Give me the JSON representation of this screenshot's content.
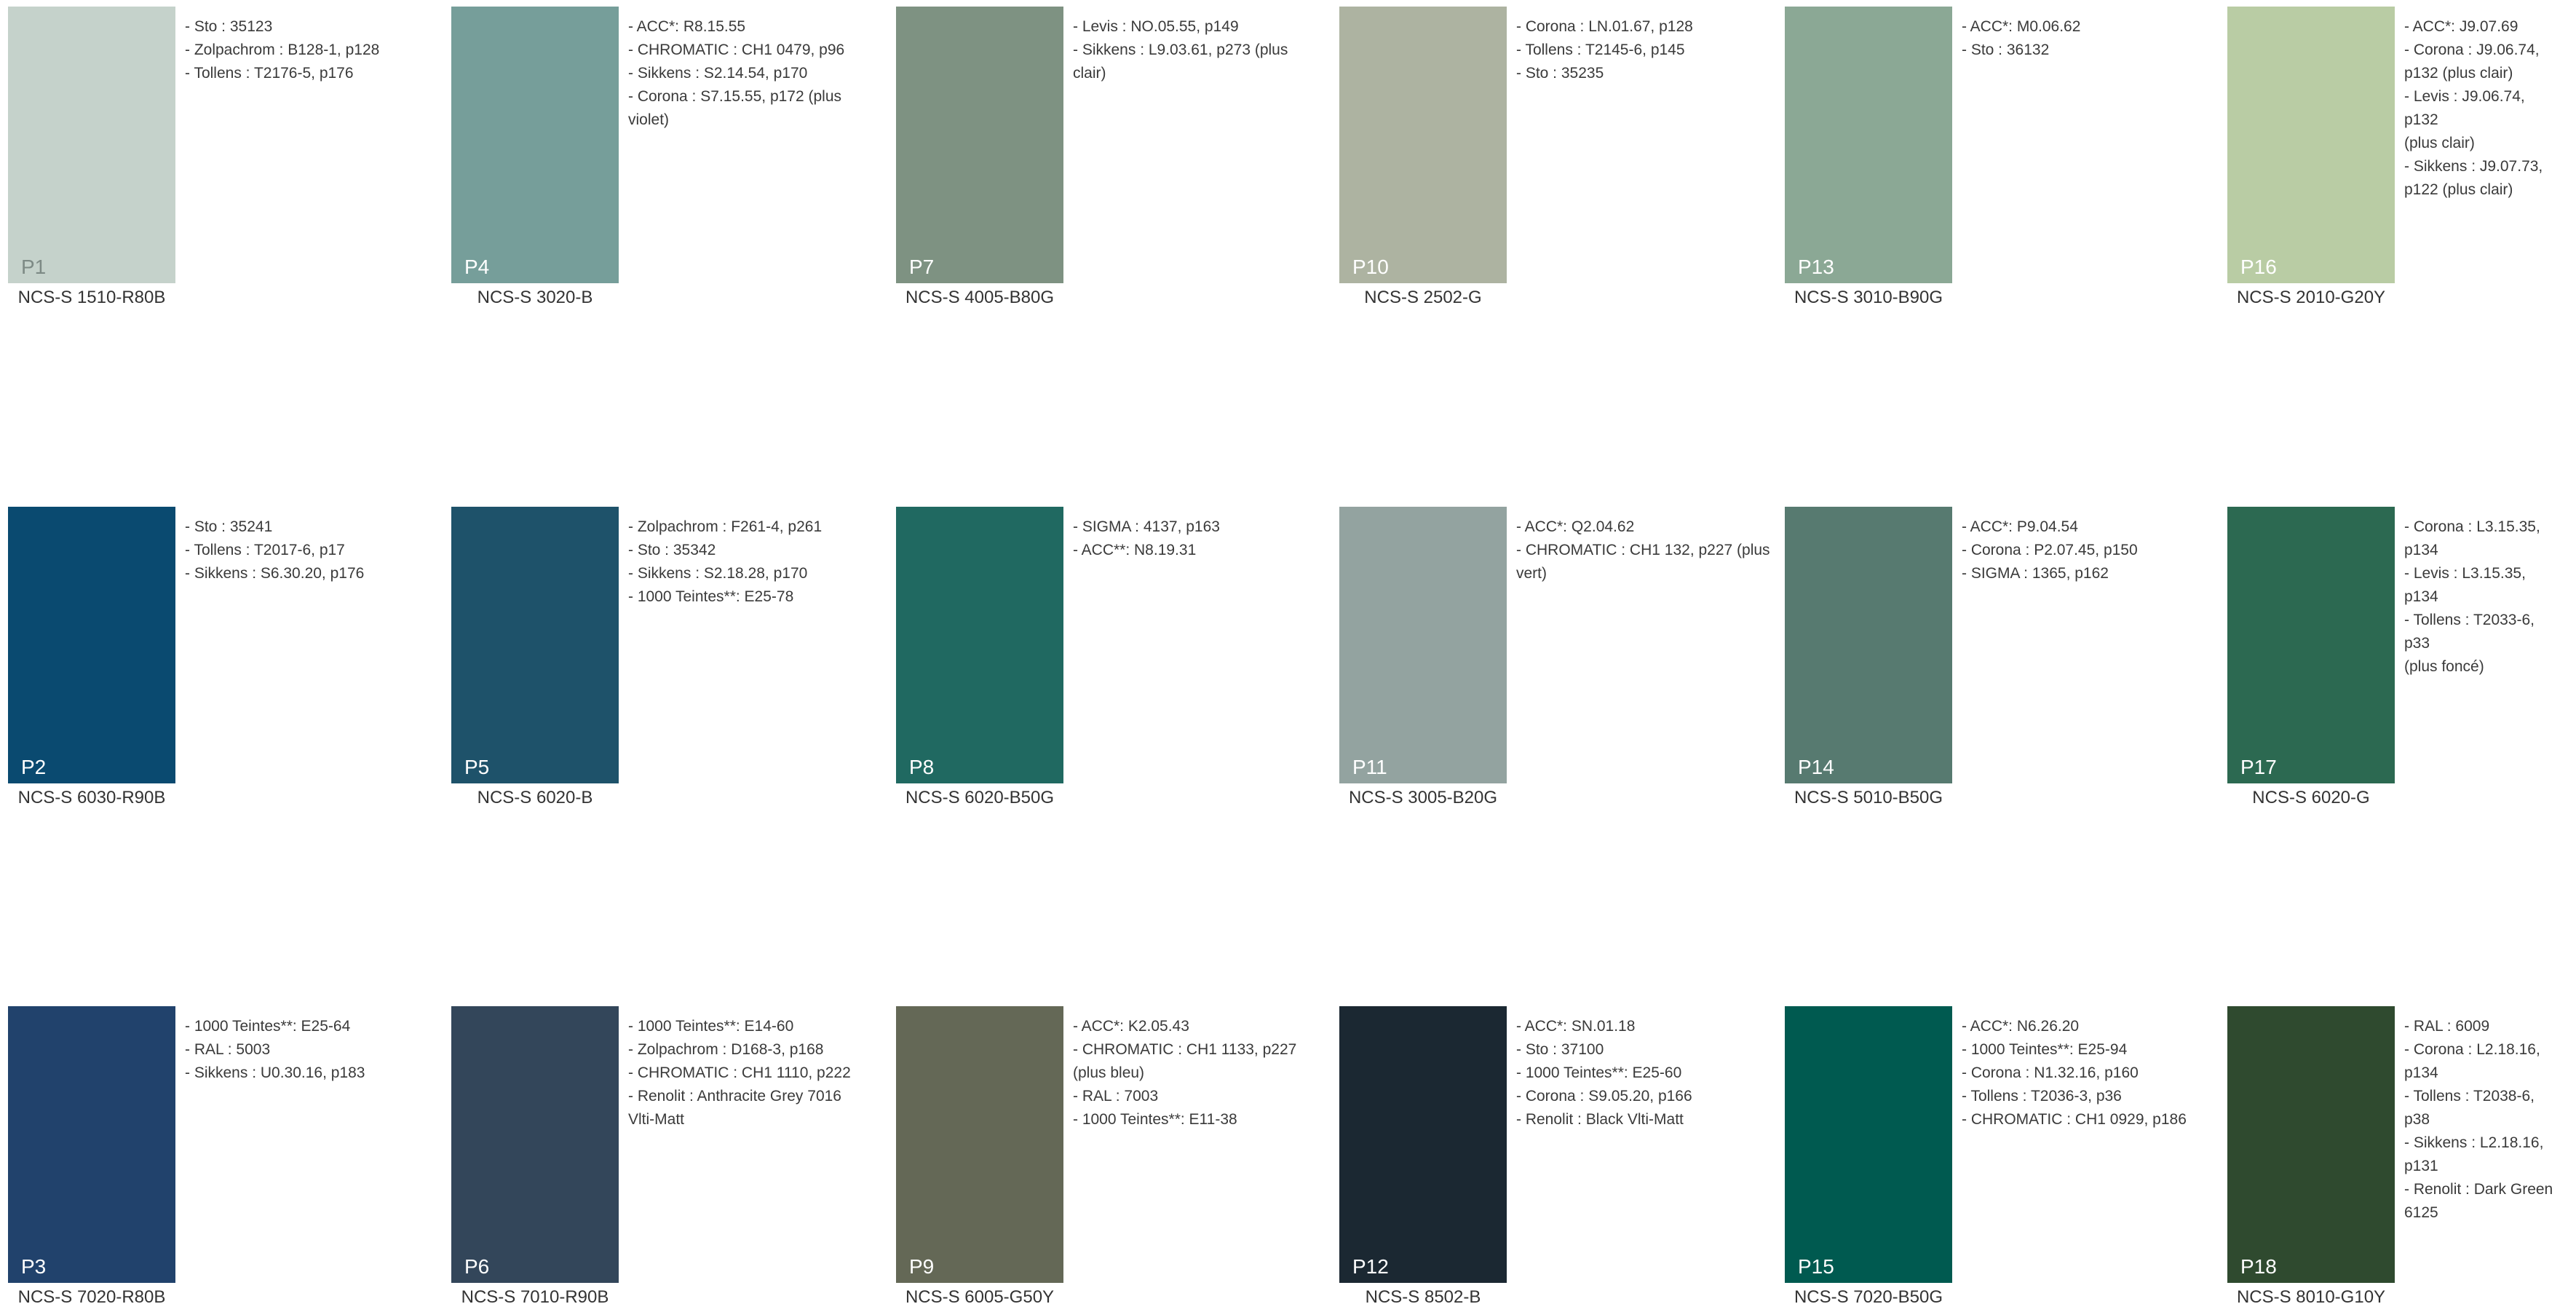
{
  "swatches": [
    {
      "code": "P1",
      "ncs": "NCS-S 1510-R80B",
      "color": "#c5d2cb",
      "label_color": "#7d8a85",
      "refs": [
        "- Sto : 35123",
        "- Zolpachrom : B128-1, p128",
        "- Tollens : T2176-5, p176"
      ]
    },
    {
      "code": "P4",
      "ncs": "NCS-S 3020-B",
      "color": "#769e9a",
      "label_color": "#ffffff",
      "refs": [
        "- ACC*: R8.15.55",
        "- CHROMATIC : CH1 0479, p96",
        "- Sikkens : S2.14.54, p170",
        "- Corona : S7.15.55, p172 (plus\nviolet)"
      ]
    },
    {
      "code": "P7",
      "ncs": "NCS-S 4005-B80G",
      "color": "#7e9282",
      "label_color": "#ffffff",
      "refs": [
        "- Levis : NO.05.55, p149",
        "- Sikkens : L9.03.61, p273 (plus\nclair)"
      ]
    },
    {
      "code": "P10",
      "ncs": "NCS-S 2502-G",
      "color": "#adb3a1",
      "label_color": "#ffffff",
      "refs": [
        "- Corona : LN.01.67, p128",
        "- Tollens : T2145-6, p145",
        "- Sto : 35235"
      ]
    },
    {
      "code": "P13",
      "ncs": "NCS-S 3010-B90G",
      "color": "#8ba895",
      "label_color": "#ffffff",
      "refs": [
        "- ACC*: M0.06.62",
        "- Sto : 36132"
      ]
    },
    {
      "code": "P16",
      "ncs": "NCS-S 2010-G20Y",
      "color": "#b9cca4",
      "label_color": "#ffffff",
      "refs": [
        "- ACC*: J9.07.69",
        "- Corona : J9.06.74,\np132 (plus clair)",
        "- Levis : J9.06.74, p132\n(plus clair)",
        "- Sikkens : J9.07.73,\np122 (plus clair)"
      ]
    },
    {
      "code": "P2",
      "ncs": "NCS-S 6030-R90B",
      "color": "#0a4a70",
      "label_color": "#ffffff",
      "refs": [
        "- Sto : 35241",
        "- Tollens : T2017-6, p17",
        "- Sikkens : S6.30.20, p176"
      ]
    },
    {
      "code": "P5",
      "ncs": "NCS-S 6020-B",
      "color": "#1e526a",
      "label_color": "#ffffff",
      "refs": [
        "- Zolpachrom : F261-4, p261",
        "- Sto : 35342",
        "- Sikkens : S2.18.28, p170",
        "- 1000 Teintes**: E25-78"
      ]
    },
    {
      "code": "P8",
      "ncs": "NCS-S 6020-B50G",
      "color": "#206961",
      "label_color": "#ffffff",
      "refs": [
        "- SIGMA : 4137, p163",
        "- ACC**: N8.19.31"
      ]
    },
    {
      "code": "P11",
      "ncs": "NCS-S 3005-B20G",
      "color": "#93a3a0",
      "label_color": "#ffffff",
      "refs": [
        "- ACC*: Q2.04.62",
        "- CHROMATIC : CH1 132, p227 (plus\nvert)"
      ]
    },
    {
      "code": "P14",
      "ncs": "NCS-S 5010-B50G",
      "color": "#577a70",
      "label_color": "#ffffff",
      "refs": [
        "- ACC*: P9.04.54",
        "- Corona : P2.07.45, p150",
        "- SIGMA : 1365, p162"
      ]
    },
    {
      "code": "P17",
      "ncs": "NCS-S 6020-G",
      "color": "#2c6951",
      "label_color": "#ffffff",
      "refs": [
        "- Corona : L3.15.35,\np134",
        "- Levis : L3.15.35, p134",
        "- Tollens : T2033-6, p33\n(plus foncé)"
      ]
    },
    {
      "code": "P3",
      "ncs": "NCS-S 7020-R80B",
      "color": "#21426c",
      "label_color": "#ffffff",
      "refs": [
        "- 1000 Teintes**: E25-64",
        "- RAL : 5003",
        "- Sikkens : U0.30.16, p183"
      ]
    },
    {
      "code": "P6",
      "ncs": "NCS-S 7010-R90B",
      "color": "#33465a",
      "label_color": "#ffffff",
      "refs": [
        "- 1000 Teintes**: E14-60",
        "- Zolpachrom : D168-3, p168",
        "- CHROMATIC : CH1 1110, p222",
        "- Renolit : Anthracite Grey 7016\nVlti-Matt"
      ]
    },
    {
      "code": "P9",
      "ncs": "NCS-S 6005-G50Y",
      "color": "#646856",
      "label_color": "#ffffff",
      "refs": [
        "- ACC*: K2.05.43",
        "- CHROMATIC : CH1 1133, p227\n(plus bleu)",
        "- RAL : 7003",
        "- 1000 Teintes**: E11-38"
      ]
    },
    {
      "code": "P12",
      "ncs": "NCS-S 8502-B",
      "color": "#1b2832",
      "label_color": "#ffffff",
      "refs": [
        "- ACC*: SN.01.18",
        "- Sto : 37100",
        "- 1000 Teintes**: E25-60",
        "- Corona : S9.05.20, p166",
        "- Renolit : Black Vlti-Matt"
      ]
    },
    {
      "code": "P15",
      "ncs": "NCS-S 7020-B50G",
      "color": "#005a50",
      "label_color": "#ffffff",
      "refs": [
        "- ACC*: N6.26.20",
        "- 1000 Teintes**: E25-94",
        "- Corona : N1.32.16, p160",
        "- Tollens : T2036-3, p36",
        "- CHROMATIC : CH1 0929, p186"
      ]
    },
    {
      "code": "P18",
      "ncs": "NCS-S 8010-G10Y",
      "color": "#2f4a2f",
      "label_color": "#ffffff",
      "refs": [
        "- RAL : 6009",
        "- Corona : L2.18.16,\np134",
        "- Tollens : T2038-6, p38",
        "- Sikkens : L2.18.16,\np131",
        "- Renolit : Dark Green\n6125"
      ]
    }
  ]
}
